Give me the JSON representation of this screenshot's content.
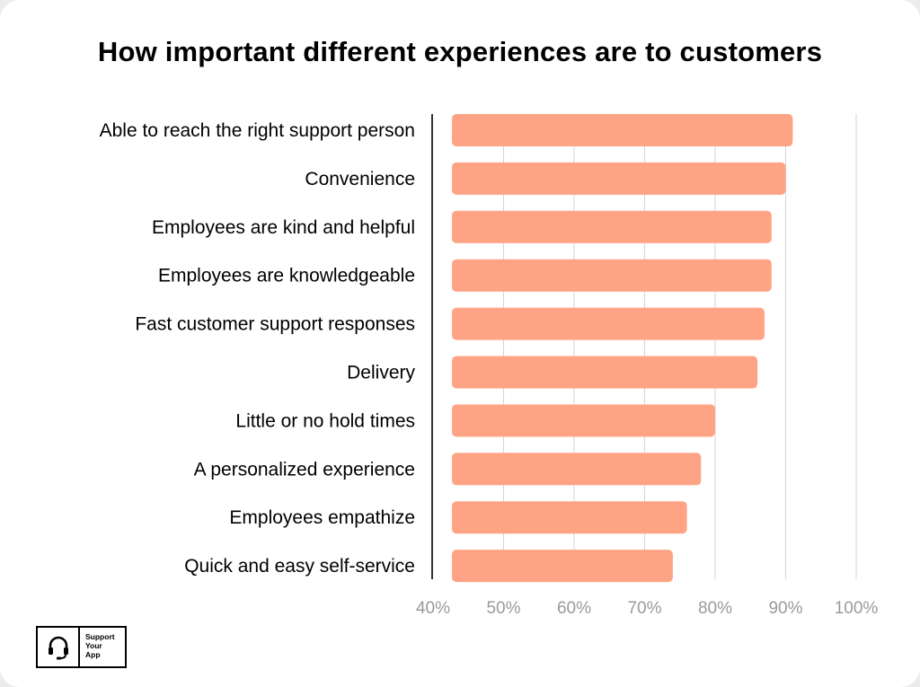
{
  "chart_data": {
    "type": "bar",
    "orientation": "horizontal",
    "title": "How important different experiences are to customers",
    "categories": [
      "Able to reach the right support person",
      "Convenience",
      "Employees are kind and helpful",
      "Employees are knowledgeable",
      "Fast customer support responses",
      "Delivery",
      "Little or no hold times",
      "A personalized experience",
      "Employees empathize",
      "Quick and easy self-service"
    ],
    "values": [
      91,
      90,
      88,
      88,
      87,
      86,
      80,
      78,
      76,
      74
    ],
    "xlim": [
      40,
      100
    ],
    "xticks": [
      40,
      50,
      60,
      70,
      80,
      90,
      100
    ],
    "tick_labels": [
      "40%",
      "50%",
      "60%",
      "70%",
      "80%",
      "90%",
      "100%"
    ],
    "xlabel": "",
    "ylabel": "",
    "grid": true,
    "bar_color": "#ffa385"
  },
  "logo": {
    "line1": "Support",
    "line2": "Your",
    "line3": "App"
  }
}
